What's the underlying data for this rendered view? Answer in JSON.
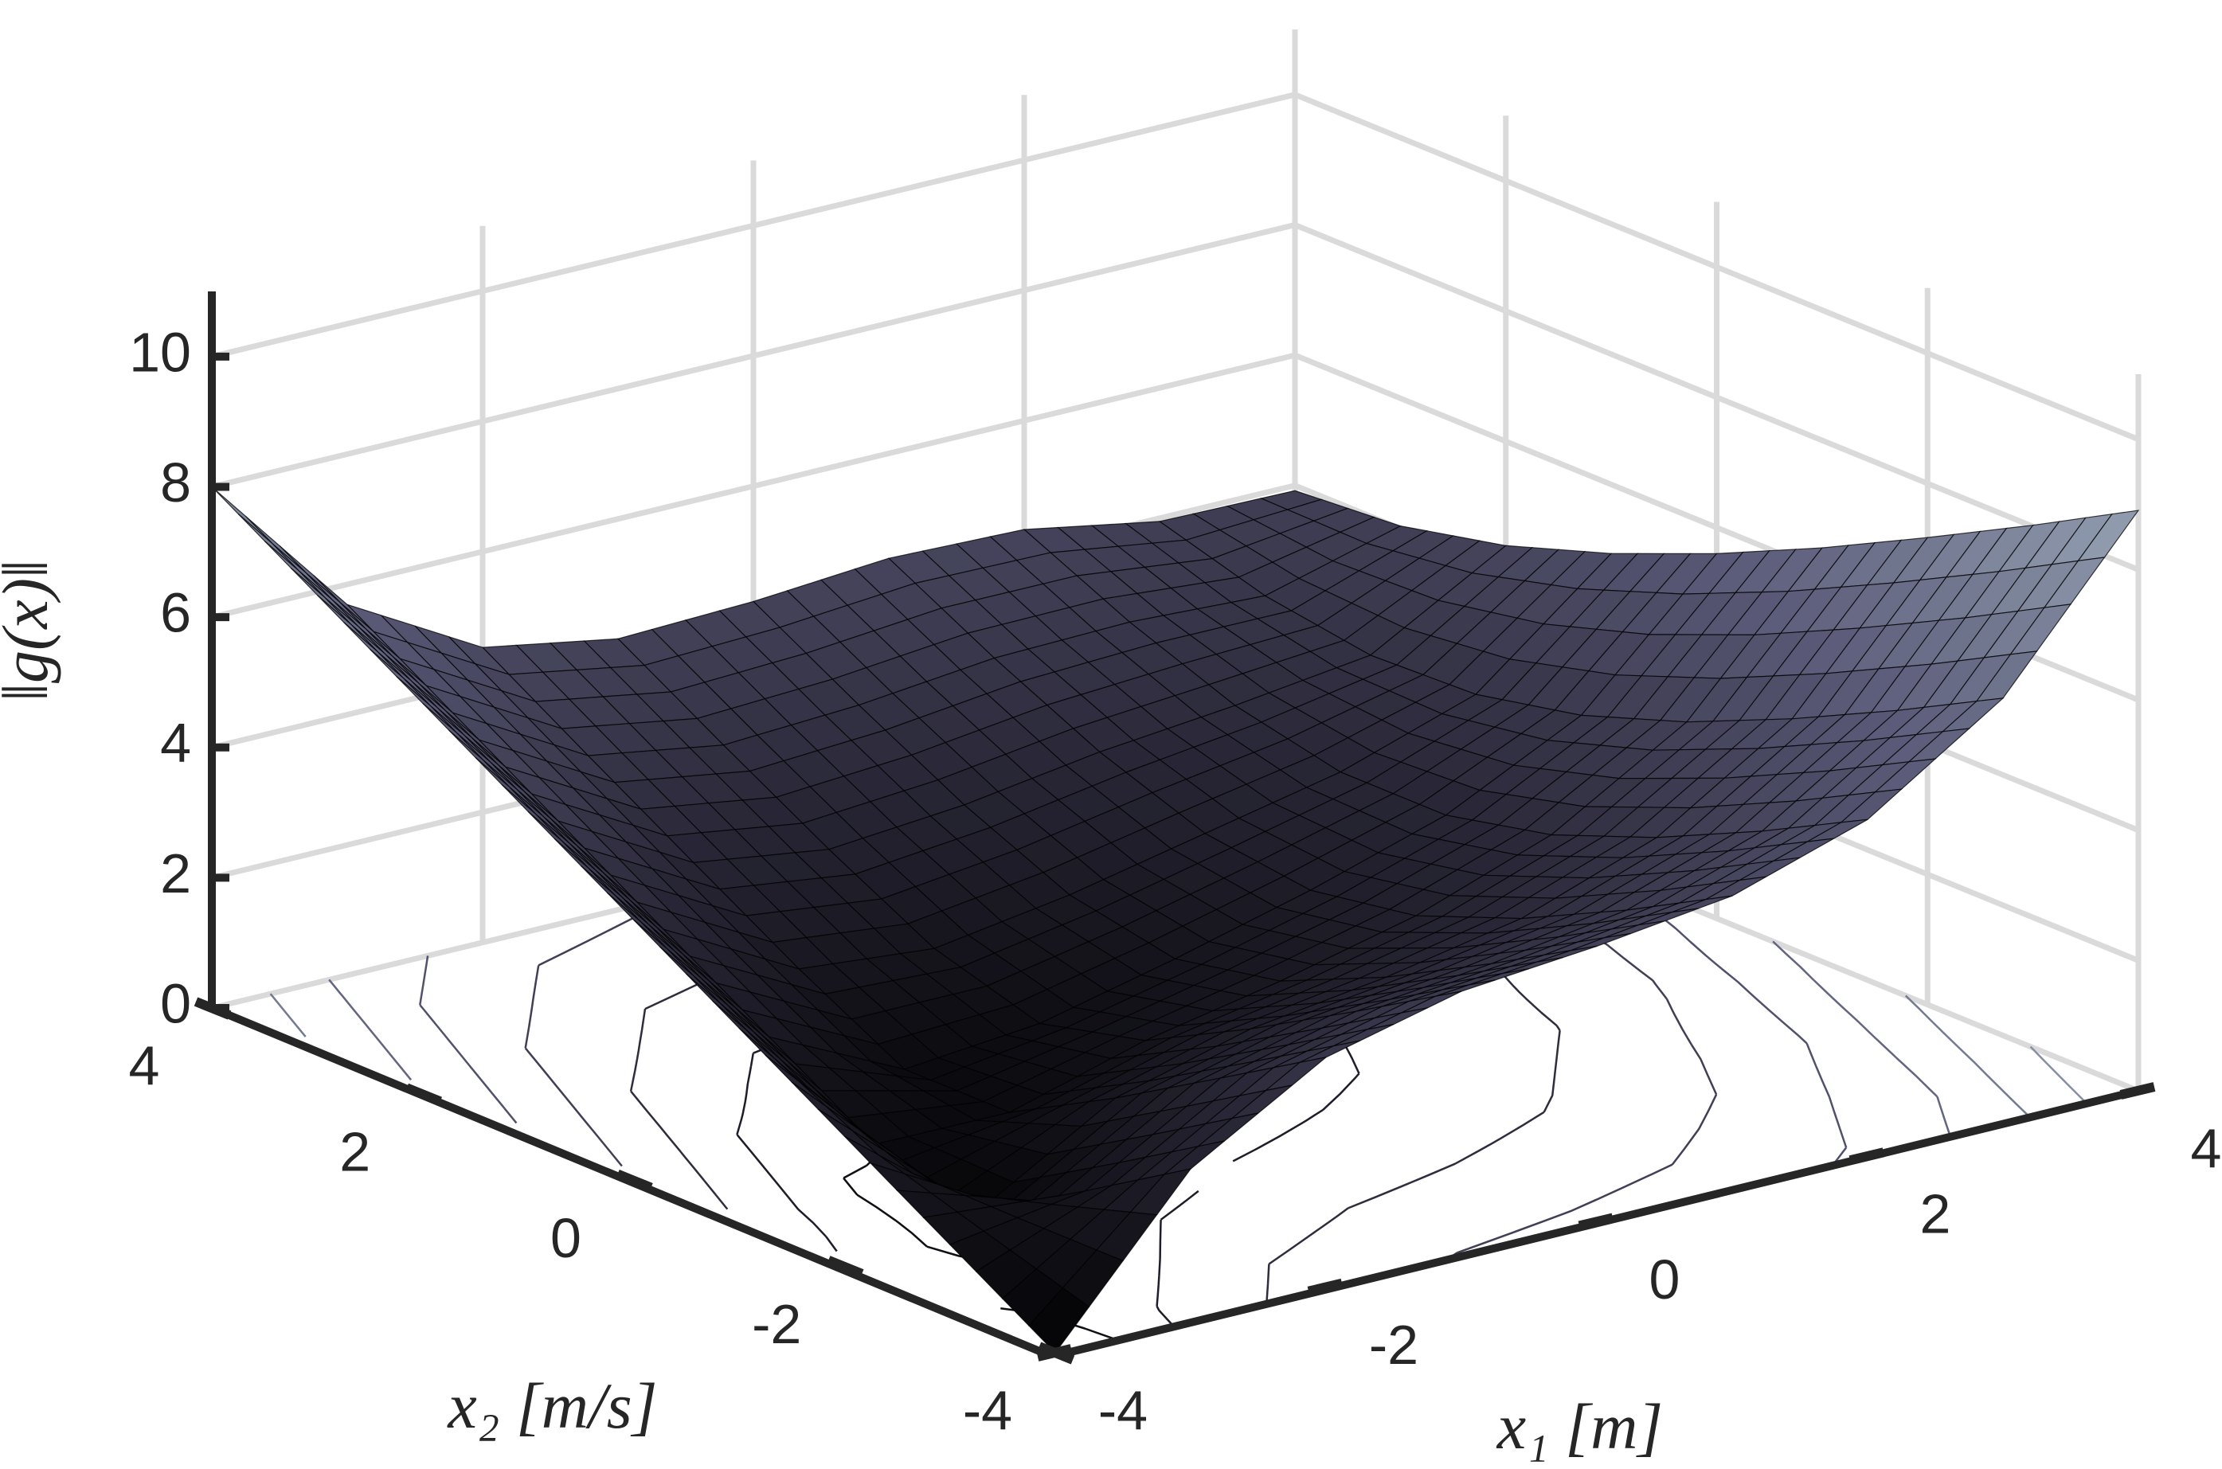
{
  "chart_data": {
    "type": "surface3d",
    "x": [
      -4,
      -3,
      -2,
      -1,
      0,
      1,
      2,
      3,
      4
    ],
    "y": [
      -4,
      -3,
      -2,
      -1,
      0,
      1,
      2,
      3,
      4
    ],
    "z": [
      [
        0,
        2.32,
        3.53,
        4.04,
        4.23,
        4.5,
        5.17,
        6.53,
        8.91
      ],
      [
        1,
        1.32,
        2.55,
        3.07,
        3.3,
        3.62,
        4.33,
        5.68,
        8.02
      ],
      [
        2,
        0.36,
        1.58,
        2.14,
        2.43,
        2.83,
        3.57,
        4.89,
        7.17
      ],
      [
        3,
        0.71,
        0.7,
        1.3,
        1.71,
        2.21,
        2.95,
        4.18,
        6.35
      ],
      [
        4,
        1.7,
        0.7,
        0.9,
        1.39,
        1.94,
        2.59,
        3.62,
        5.6
      ],
      [
        5,
        2.69,
        1.58,
        1.39,
        1.71,
        2.15,
        2.59,
        3.28,
        4.94
      ],
      [
        6,
        3.69,
        2.55,
        2.25,
        2.43,
        2.74,
        2.95,
        3.22,
        4.4
      ],
      [
        7,
        4.69,
        3.53,
        3.19,
        3.3,
        3.52,
        3.57,
        3.47,
        4.04
      ],
      [
        8,
        5.69,
        4.53,
        4.16,
        4.23,
        4.39,
        4.33,
        3.95,
        3.92
      ]
    ],
    "xlabel": "x₁ [m]",
    "ylabel": "x₂ [m/s]",
    "zlabel": "‖g(x)‖",
    "xlim": [
      -4,
      4
    ],
    "ylim": [
      -4,
      4
    ],
    "zlim": [
      0,
      11
    ],
    "xticks": [
      -4,
      -2,
      0,
      2,
      4
    ],
    "yticks": [
      -4,
      -2,
      0,
      2,
      4
    ],
    "zticks": [
      0,
      2,
      4,
      6,
      8,
      10
    ],
    "grid": true,
    "colormap": [
      "#000000",
      "#2a2838",
      "#5a5a78",
      "#8a94a8",
      "#c4d2d6"
    ],
    "contour_levels": [
      1,
      2,
      3,
      4,
      5,
      6,
      7,
      8,
      9
    ]
  }
}
